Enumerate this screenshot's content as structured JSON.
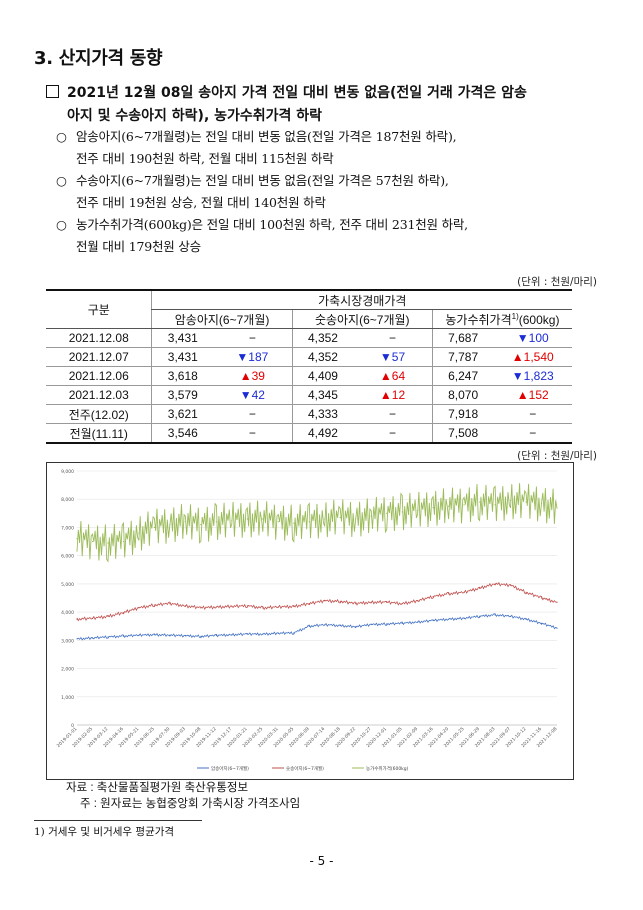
{
  "section_title": "3. 산지가격 동향",
  "headline": "2021년 12월 08일 송아지 가격 전일 대비 변동 없음(전일 거래 가격은 암송아지 및 수송아지 하락), 농가수취가격 하락",
  "headline_line1": "2021년 12월 08일 송아지 가격 전일 대비 변동 없음(전일 거래 가격은 암송",
  "headline_line2": "아지 및 수송아지 하락), 농가수취가격 하락",
  "bullets": [
    {
      "marker": "○",
      "line1": "암송아지(6~7개월령)는 전일 대비 변동 없음(전일 가격은 187천원 하락),",
      "line2": "전주 대비 190천원 하락, 전월 대비 115천원 하락"
    },
    {
      "marker": "○",
      "line1": "수송아지(6~7개월령)는 전일 대비 변동 없음(전일 가격은 57천원 하락),",
      "line2": "전주 대비 19천원 상승, 전월 대비 140천원 하락"
    },
    {
      "marker": "○",
      "line1": "농가수취가격(600kg)은 전일 대비 100천원 하락, 전주 대비 231천원 하락,",
      "line2": "전월 대비 179천원 상승"
    }
  ],
  "table_unit": "(단위 : 천원/마리)",
  "table": {
    "header_group": "구분",
    "header_market": "가축시장경매가격",
    "col_female": "암송아지(6~7개월)",
    "col_male": "숫송아지(6~7개월)",
    "col_farm_prefix": "농가수취가격",
    "col_farm_sup": "1)",
    "col_farm_suffix": "(600kg)",
    "rows": [
      {
        "date": "2021.12.08",
        "f": "3,431",
        "fc": "−",
        "fd": "",
        "m": "4,352",
        "mc": "−",
        "md": "",
        "p": "7,687",
        "pc": "▼100",
        "pd": "dn"
      },
      {
        "date": "2021.12.07",
        "f": "3,431",
        "fc": "▼187",
        "fd": "dn",
        "m": "4,352",
        "mc": "▼57",
        "md": "dn",
        "p": "7,787",
        "pc": "▲1,540",
        "pd": "up"
      },
      {
        "date": "2021.12.06",
        "f": "3,618",
        "fc": "▲39",
        "fd": "up",
        "m": "4,409",
        "mc": "▲64",
        "md": "up",
        "p": "6,247",
        "pc": "▼1,823",
        "pd": "dn"
      },
      {
        "date": "2021.12.03",
        "f": "3,579",
        "fc": "▼42",
        "fd": "dn",
        "m": "4,345",
        "mc": "▲12",
        "md": "up",
        "p": "8,070",
        "pc": "▲152",
        "pd": "up"
      },
      {
        "date": "전주(12.02)",
        "f": "3,621",
        "fc": "−",
        "fd": "",
        "m": "4,333",
        "mc": "−",
        "md": "",
        "p": "7,918",
        "pc": "−",
        "pd": ""
      },
      {
        "date": "전월(11.11)",
        "f": "3,546",
        "fc": "−",
        "fd": "",
        "m": "4,492",
        "mc": "−",
        "md": "",
        "p": "7,508",
        "pc": "−",
        "pd": ""
      }
    ]
  },
  "chart_unit": "(단위 : 천원/마리)",
  "chart_data": {
    "type": "line",
    "ylim": [
      0,
      9000
    ],
    "yticks": [
      "0",
      "1,000",
      "2,000",
      "3,000",
      "4,000",
      "5,000",
      "6,000",
      "7,000",
      "8,000",
      "9,000"
    ],
    "x": [
      "2019-01-01",
      "2019-02-05",
      "2019-03-12",
      "2019-04-16",
      "2019-05-21",
      "2019-06-25",
      "2019-07-30",
      "2019-09-03",
      "2019-10-08",
      "2019-11-12",
      "2019-12-17",
      "2020-01-21",
      "2020-02-25",
      "2020-03-31",
      "2020-05-05",
      "2020-06-09",
      "2020-07-14",
      "2020-08-18",
      "2020-09-22",
      "2020-10-27",
      "2020-12-01",
      "2021-01-05",
      "2021-02-09",
      "2021-03-16",
      "2021-04-20",
      "2021-05-25",
      "2021-06-29",
      "2021-08-03",
      "2021-09-07",
      "2021-10-12",
      "2021-11-16",
      "2021-12-08"
    ],
    "series": [
      {
        "name": "암송아지(6~7개월)",
        "color": "#4472c4",
        "values": [
          3050,
          3080,
          3120,
          3150,
          3180,
          3200,
          3180,
          3160,
          3140,
          3170,
          3200,
          3220,
          3220,
          3250,
          3260,
          3500,
          3550,
          3520,
          3480,
          3560,
          3580,
          3600,
          3650,
          3700,
          3750,
          3780,
          3850,
          3900,
          3850,
          3750,
          3600,
          3431
        ]
      },
      {
        "name": "숫송아지(6~7개월)",
        "color": "#c0504d",
        "values": [
          3750,
          3780,
          3850,
          3980,
          4150,
          4250,
          4300,
          4220,
          4150,
          4180,
          4200,
          4220,
          4150,
          4180,
          4200,
          4300,
          4400,
          4380,
          4300,
          4350,
          4350,
          4300,
          4400,
          4550,
          4650,
          4700,
          4850,
          5000,
          4950,
          4700,
          4500,
          4352
        ]
      },
      {
        "name": "농가수취가격(600kg)",
        "color": "#9bbb59",
        "values": [
          6600,
          6500,
          6450,
          6500,
          6800,
          7000,
          7100,
          7200,
          7100,
          7200,
          7250,
          7300,
          7300,
          7200,
          7150,
          7200,
          7300,
          7350,
          7300,
          7400,
          7500,
          7550,
          7600,
          7700,
          7750,
          7800,
          7900,
          7800,
          7950,
          7900,
          7850,
          7687
        ]
      }
    ]
  },
  "notes": {
    "source": "자료 : 축산물품질평가원 축산유통정보",
    "note": "주 : 원자료는 농협중앙회 가축시장 가격조사임"
  },
  "footnote": "1) 거세우 및 비거세우 평균가격",
  "page_number": "- 5 -"
}
